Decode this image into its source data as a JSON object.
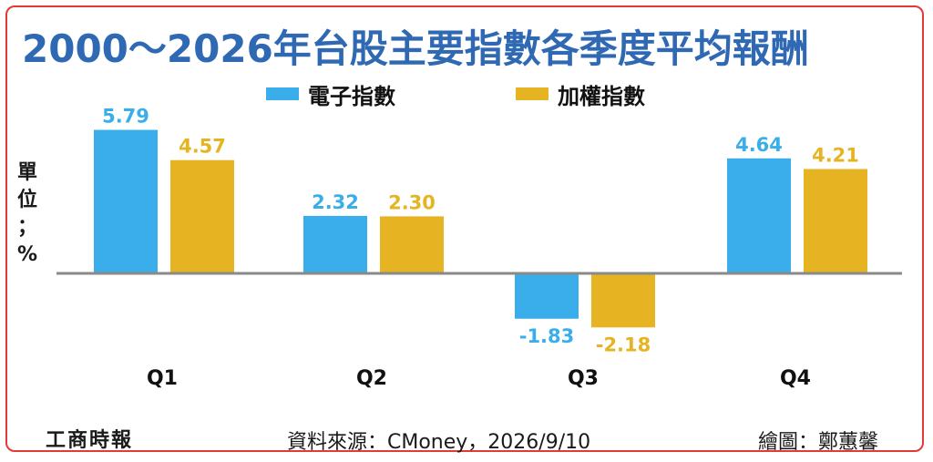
{
  "chart_data": {
    "type": "bar",
    "title": "2000～2026年台股主要指數各季度平均報酬",
    "ylabel": "單\n位\n；\n%",
    "categories": [
      "Q1",
      "Q2",
      "Q3",
      "Q4"
    ],
    "series": [
      {
        "name": "電子指數",
        "color": "#3aaeea",
        "values": [
          5.79,
          2.32,
          -1.83,
          4.64
        ],
        "labels": [
          "5.79",
          "2.32",
          "-1.83",
          "4.64"
        ]
      },
      {
        "name": "加權指數",
        "color": "#e6b422",
        "values": [
          4.57,
          2.3,
          -2.18,
          4.21
        ],
        "labels": [
          "4.57",
          "2.30",
          "-2.18",
          "4.21"
        ]
      }
    ],
    "ylim": [
      -3,
      6
    ],
    "grid": false,
    "legend_position": "top-center",
    "axis_color": "#8a8a8a",
    "label_colors": [
      "#3aaeea",
      "#e6b422"
    ]
  },
  "footer": {
    "logo": "工商時報",
    "source": "資料來源：CMoney，2026/9/10",
    "credit": "繪圖：鄭蕙馨"
  },
  "colors": {
    "title": "#2f69b3",
    "frame_border": "#e53935"
  }
}
